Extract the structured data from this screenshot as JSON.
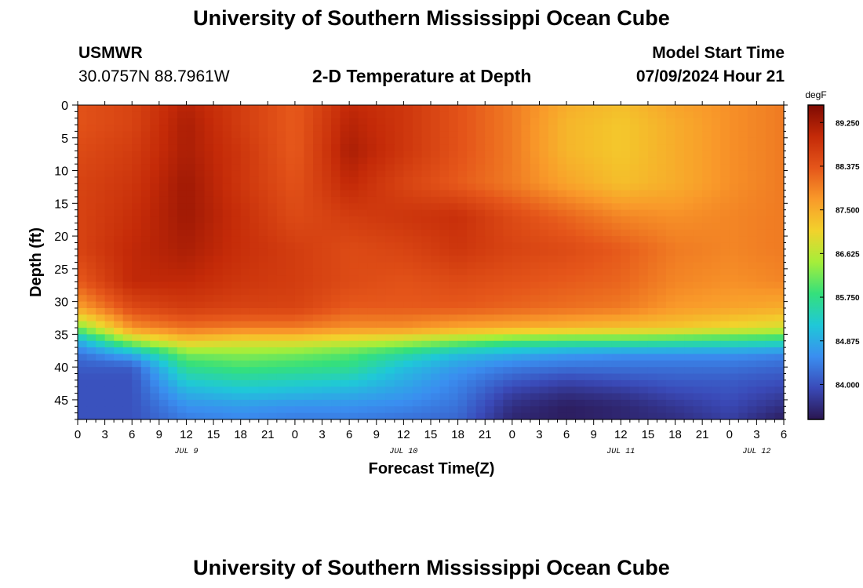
{
  "header": {
    "title": "University of Southern Mississippi Ocean Cube",
    "station": "USMWR",
    "coordinates": "30.0757N  88.7961W",
    "plot_title": "2-D Temperature at Depth",
    "model_label": "Model Start Time",
    "model_start": "07/09/2024 Hour 21"
  },
  "footer": {
    "title": "University of Southern Mississippi Ocean Cube"
  },
  "chart_data": {
    "type": "heatmap",
    "title": "2-D Temperature at Depth",
    "xlabel": "Forecast Time(Z)",
    "ylabel": "Depth (ft)",
    "x_tick_labels": [
      "0",
      "3",
      "6",
      "9",
      "12",
      "15",
      "18",
      "21",
      "0",
      "3",
      "6",
      "9",
      "12",
      "15",
      "18",
      "21",
      "0",
      "3",
      "6",
      "9",
      "12",
      "15",
      "18",
      "21",
      "0",
      "3",
      "6"
    ],
    "date_labels": [
      {
        "label": "JUL 9",
        "hour_index": 4
      },
      {
        "label": "JUL 10",
        "hour_index": 12
      },
      {
        "label": "JUL 11",
        "hour_index": 20
      },
      {
        "label": "JUL 12",
        "hour_index": 25
      }
    ],
    "x_range_hours": [
      0,
      78
    ],
    "y_ticks": [
      0,
      5,
      10,
      15,
      20,
      25,
      30,
      35,
      40,
      45
    ],
    "y_range_ft": [
      0,
      48
    ],
    "depth_axis_inverted": true,
    "colorbar": {
      "unit": "degF",
      "ticks": [
        "89.250",
        "88.375",
        "87.500",
        "86.625",
        "85.750",
        "84.875",
        "84.000"
      ],
      "range": [
        83.3,
        89.6
      ],
      "colors": [
        "#2a1650",
        "#3a4ab8",
        "#3a8ef0",
        "#1fc8d8",
        "#34e07c",
        "#a5ee3a",
        "#f2d22c",
        "#f99a2a",
        "#e5561a",
        "#c42a08",
        "#7e0a02"
      ]
    },
    "grid_hours": [
      0,
      6,
      12,
      18,
      24,
      30,
      36,
      42,
      48,
      54,
      60,
      66,
      72,
      78
    ],
    "grid_depths_ft": [
      0,
      3,
      7,
      12,
      17,
      22,
      27,
      31,
      34,
      36,
      38,
      40,
      42,
      44,
      46,
      48
    ],
    "temperature_degF": [
      [
        88.4,
        88.6,
        89.1,
        88.7,
        88.3,
        89.0,
        88.8,
        88.4,
        88.0,
        87.5,
        87.3,
        87.6,
        87.8,
        88.0
      ],
      [
        88.4,
        88.6,
        89.2,
        88.7,
        88.3,
        89.1,
        88.8,
        88.4,
        88.0,
        87.4,
        87.2,
        87.5,
        87.8,
        88.0
      ],
      [
        88.5,
        88.7,
        89.2,
        88.8,
        88.3,
        89.2,
        88.8,
        88.4,
        88.0,
        87.4,
        87.2,
        87.5,
        87.8,
        88.0
      ],
      [
        88.6,
        88.8,
        89.3,
        88.8,
        88.4,
        89.0,
        88.6,
        88.3,
        88.0,
        87.6,
        87.3,
        87.5,
        87.8,
        88.0
      ],
      [
        88.6,
        88.9,
        89.3,
        88.9,
        88.5,
        88.7,
        88.8,
        88.9,
        88.5,
        88.2,
        87.9,
        87.8,
        87.9,
        88.0
      ],
      [
        88.6,
        89.0,
        89.2,
        88.9,
        88.7,
        88.5,
        88.6,
        88.8,
        88.6,
        88.5,
        88.3,
        88.0,
        87.9,
        88.0
      ],
      [
        88.3,
        89.0,
        89.0,
        88.8,
        88.7,
        88.5,
        88.4,
        88.5,
        88.4,
        88.3,
        88.2,
        87.9,
        87.8,
        87.9
      ],
      [
        87.6,
        88.5,
        88.7,
        88.6,
        88.6,
        88.3,
        88.3,
        88.3,
        88.2,
        88.1,
        88.0,
        87.7,
        87.6,
        87.5
      ],
      [
        86.2,
        87.8,
        88.1,
        88.0,
        88.0,
        87.8,
        87.8,
        87.6,
        87.5,
        87.4,
        87.3,
        87.2,
        87.0,
        86.8
      ],
      [
        84.9,
        86.5,
        87.2,
        87.0,
        87.0,
        86.8,
        86.6,
        86.3,
        86.0,
        85.9,
        85.9,
        85.8,
        85.7,
        85.6
      ],
      [
        84.3,
        84.9,
        86.2,
        86.3,
        86.2,
        86.0,
        85.6,
        85.1,
        84.9,
        84.7,
        84.6,
        84.6,
        84.6,
        84.5
      ],
      [
        84.1,
        84.1,
        85.7,
        85.9,
        85.8,
        85.7,
        85.1,
        84.7,
        84.4,
        84.3,
        84.3,
        84.3,
        84.3,
        84.2
      ],
      [
        84.0,
        84.0,
        85.3,
        85.5,
        85.4,
        85.3,
        84.9,
        84.5,
        84.1,
        83.9,
        84.0,
        84.1,
        84.1,
        84.0
      ],
      [
        84.0,
        84.0,
        84.9,
        85.1,
        85.0,
        84.9,
        84.7,
        84.4,
        83.8,
        83.6,
        83.7,
        83.9,
        84.0,
        83.8
      ],
      [
        84.0,
        84.0,
        84.6,
        84.7,
        84.6,
        84.6,
        84.5,
        84.3,
        83.6,
        83.4,
        83.5,
        83.7,
        83.9,
        83.6
      ],
      [
        84.0,
        84.0,
        84.4,
        84.5,
        84.4,
        84.4,
        84.3,
        84.2,
        83.5,
        83.4,
        83.5,
        83.6,
        83.8,
        83.4
      ]
    ]
  }
}
